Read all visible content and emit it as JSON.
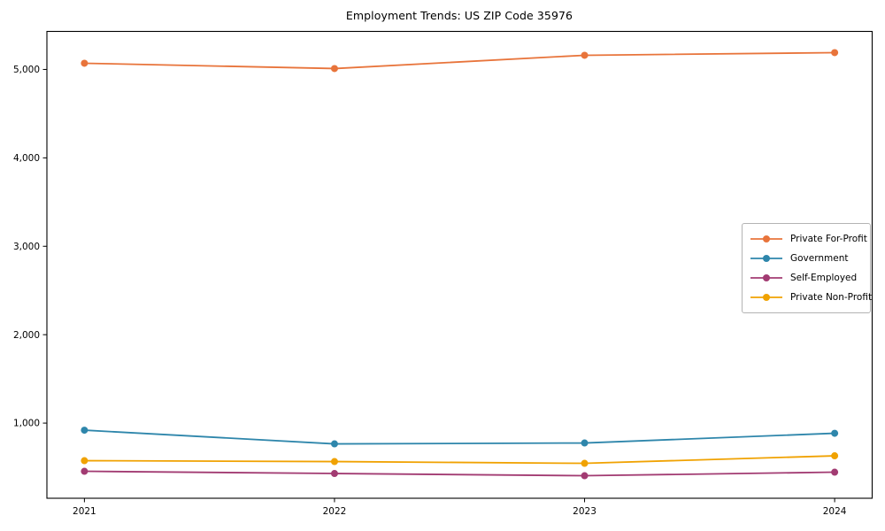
{
  "figure": {
    "title": "Employment Trends: US ZIP Code 35976",
    "background_color": "#ffffff",
    "axis_color": "#000000",
    "legend_border_color": "#b3b3b3"
  },
  "chart_data": {
    "type": "line",
    "title": "Employment Trends: US ZIP Code 35976",
    "xlabel": "",
    "ylabel": "",
    "x": [
      2021,
      2022,
      2023,
      2024
    ],
    "x_tick_labels": [
      "2021",
      "2022",
      "2023",
      "2024"
    ],
    "series": [
      {
        "name": "Private For-Profit",
        "color": "#e8743b",
        "values": [
          5070,
          5010,
          5160,
          5190
        ]
      },
      {
        "name": "Government",
        "color": "#2e86ab",
        "values": [
          920,
          765,
          775,
          885
        ]
      },
      {
        "name": "Self-Employed",
        "color": "#a23b72",
        "values": [
          455,
          430,
          405,
          445
        ]
      },
      {
        "name": "Private Non-Profit",
        "color": "#f0a202",
        "values": [
          575,
          565,
          545,
          630
        ]
      }
    ],
    "yticks": [
      1000,
      2000,
      3000,
      4000,
      5000
    ],
    "ytick_labels": [
      "1,000",
      "2,000",
      "3,000",
      "4,000",
      "5,000"
    ],
    "ylim": [
      150,
      5430
    ],
    "xlim": [
      2020.85,
      2024.15
    ],
    "grid": false,
    "legend_position": "center-right",
    "marker": "circle",
    "line_width": 1.8,
    "marker_radius": 4
  }
}
